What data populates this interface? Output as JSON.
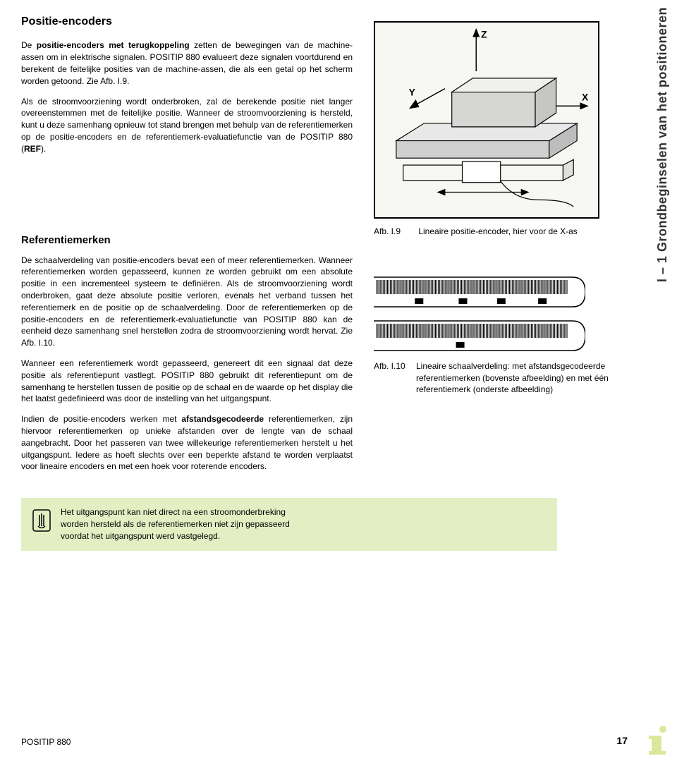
{
  "side_tab": "I – 1 Grondbeginselen van het positioneren",
  "section1": {
    "title": "Positie-encoders",
    "p1_pre": "De ",
    "p1_bold": "positie-encoders met terugkoppeling",
    "p1_post": " zetten de bewegingen van de machine-assen om in elektrische signalen. POSITIP 880 evalueert deze signalen voortdurend en berekent de feitelijke posities van de machine-assen, die als een getal op het scherm worden getoond. Zie Afb. I.9.",
    "p2_pre": "Als de stroomvoorziening wordt onderbroken, zal de berekende positie niet langer overeenstemmen met de feitelijke positie. Wanneer de stroomvoorziening is hersteld, kunt u deze samenhang opnieuw tot stand brengen met behulp van de referentiemerken op de positie-encoders en de referentiemerk-evaluatiefunctie van de POSITIP 880 (",
    "p2_bold": "REF",
    "p2_post": ")."
  },
  "section2": {
    "title": "Referentiemerken",
    "p1": "De schaalverdeling van positie-encoders bevat een of meer referentiemerken. Wanneer referentiemerken worden gepasseerd, kunnen ze worden gebruikt om een absolute positie in een incrementeel systeem te definiëren. Als de stroomvoorziening wordt onderbroken, gaat deze absolute positie verloren, evenals het verband tussen het referentiemerk en de positie op de schaalverdeling. Door de referentiemerken op de positie-encoders en de referentiemerk-evaluatiefunctie van POSITIP 880 kan de eenheid deze samenhang snel herstellen zodra de stroomvoorziening wordt hervat. Zie Afb. I.10.",
    "p2": "Wanneer een referentiemerk wordt gepasseerd, genereert dit een signaal dat deze positie als referentiepunt vastlegt. POSITIP 880 gebruikt dit referentiepunt om de samenhang te herstellen tussen de positie op de schaal en de waarde op het display die het laatst gedefinieerd was door de instelling van het uitgangspunt.",
    "p3_pre": "Indien de positie-encoders werken met ",
    "p3_bold": "afstandsgecodeerde",
    "p3_post": " referentiemerken, zijn hiervoor referentiemerken op unieke afstanden over de lengte van de schaal aangebracht. Door het passeren van twee willekeurige referentiemerken herstelt u het uitgangspunt. Iedere as hoeft slechts over een beperkte afstand te worden verplaatst voor lineaire encoders en met een hoek voor roterende encoders."
  },
  "fig9": {
    "label": "Afb. I.9",
    "caption": "Lineaire positie-encoder, hier voor de X-as",
    "axis_z": "Z",
    "axis_y": "Y",
    "axis_x": "X",
    "colors": {
      "border": "#000000",
      "bg": "#f7f7f3",
      "table_top": "#e8e8e8",
      "table_side": "#cfcfcf",
      "block_top": "#f0f0ee",
      "block_side": "#d6d6d4",
      "encoder_body": "#f7f7f3",
      "line": "#000000"
    }
  },
  "fig10": {
    "label": "Afb. I.10",
    "caption": "Lineaire schaalverdeling: met afstandsgecodeerde referentiemerken (bovenste afbeelding) en met één referentiemerk (onderste afbeelding)",
    "colors": {
      "scale_bg": "#ffffff",
      "tick": "#000000",
      "ref_mark": "#000000",
      "outline": "#000000"
    },
    "top_scale": {
      "tick_count": 140,
      "ref_marks": [
        30,
        62,
        90,
        120
      ]
    },
    "bottom_scale": {
      "tick_count": 140,
      "ref_marks": [
        60
      ]
    }
  },
  "note": {
    "text": "Het uitgangspunt kan niet direct na een stroomonderbreking worden hersteld als de referentiemerken niet zijn gepasseerd voordat het uitgangspunt werd vastgelegd."
  },
  "footer": {
    "product": "POSITIP 880",
    "page": "17"
  }
}
